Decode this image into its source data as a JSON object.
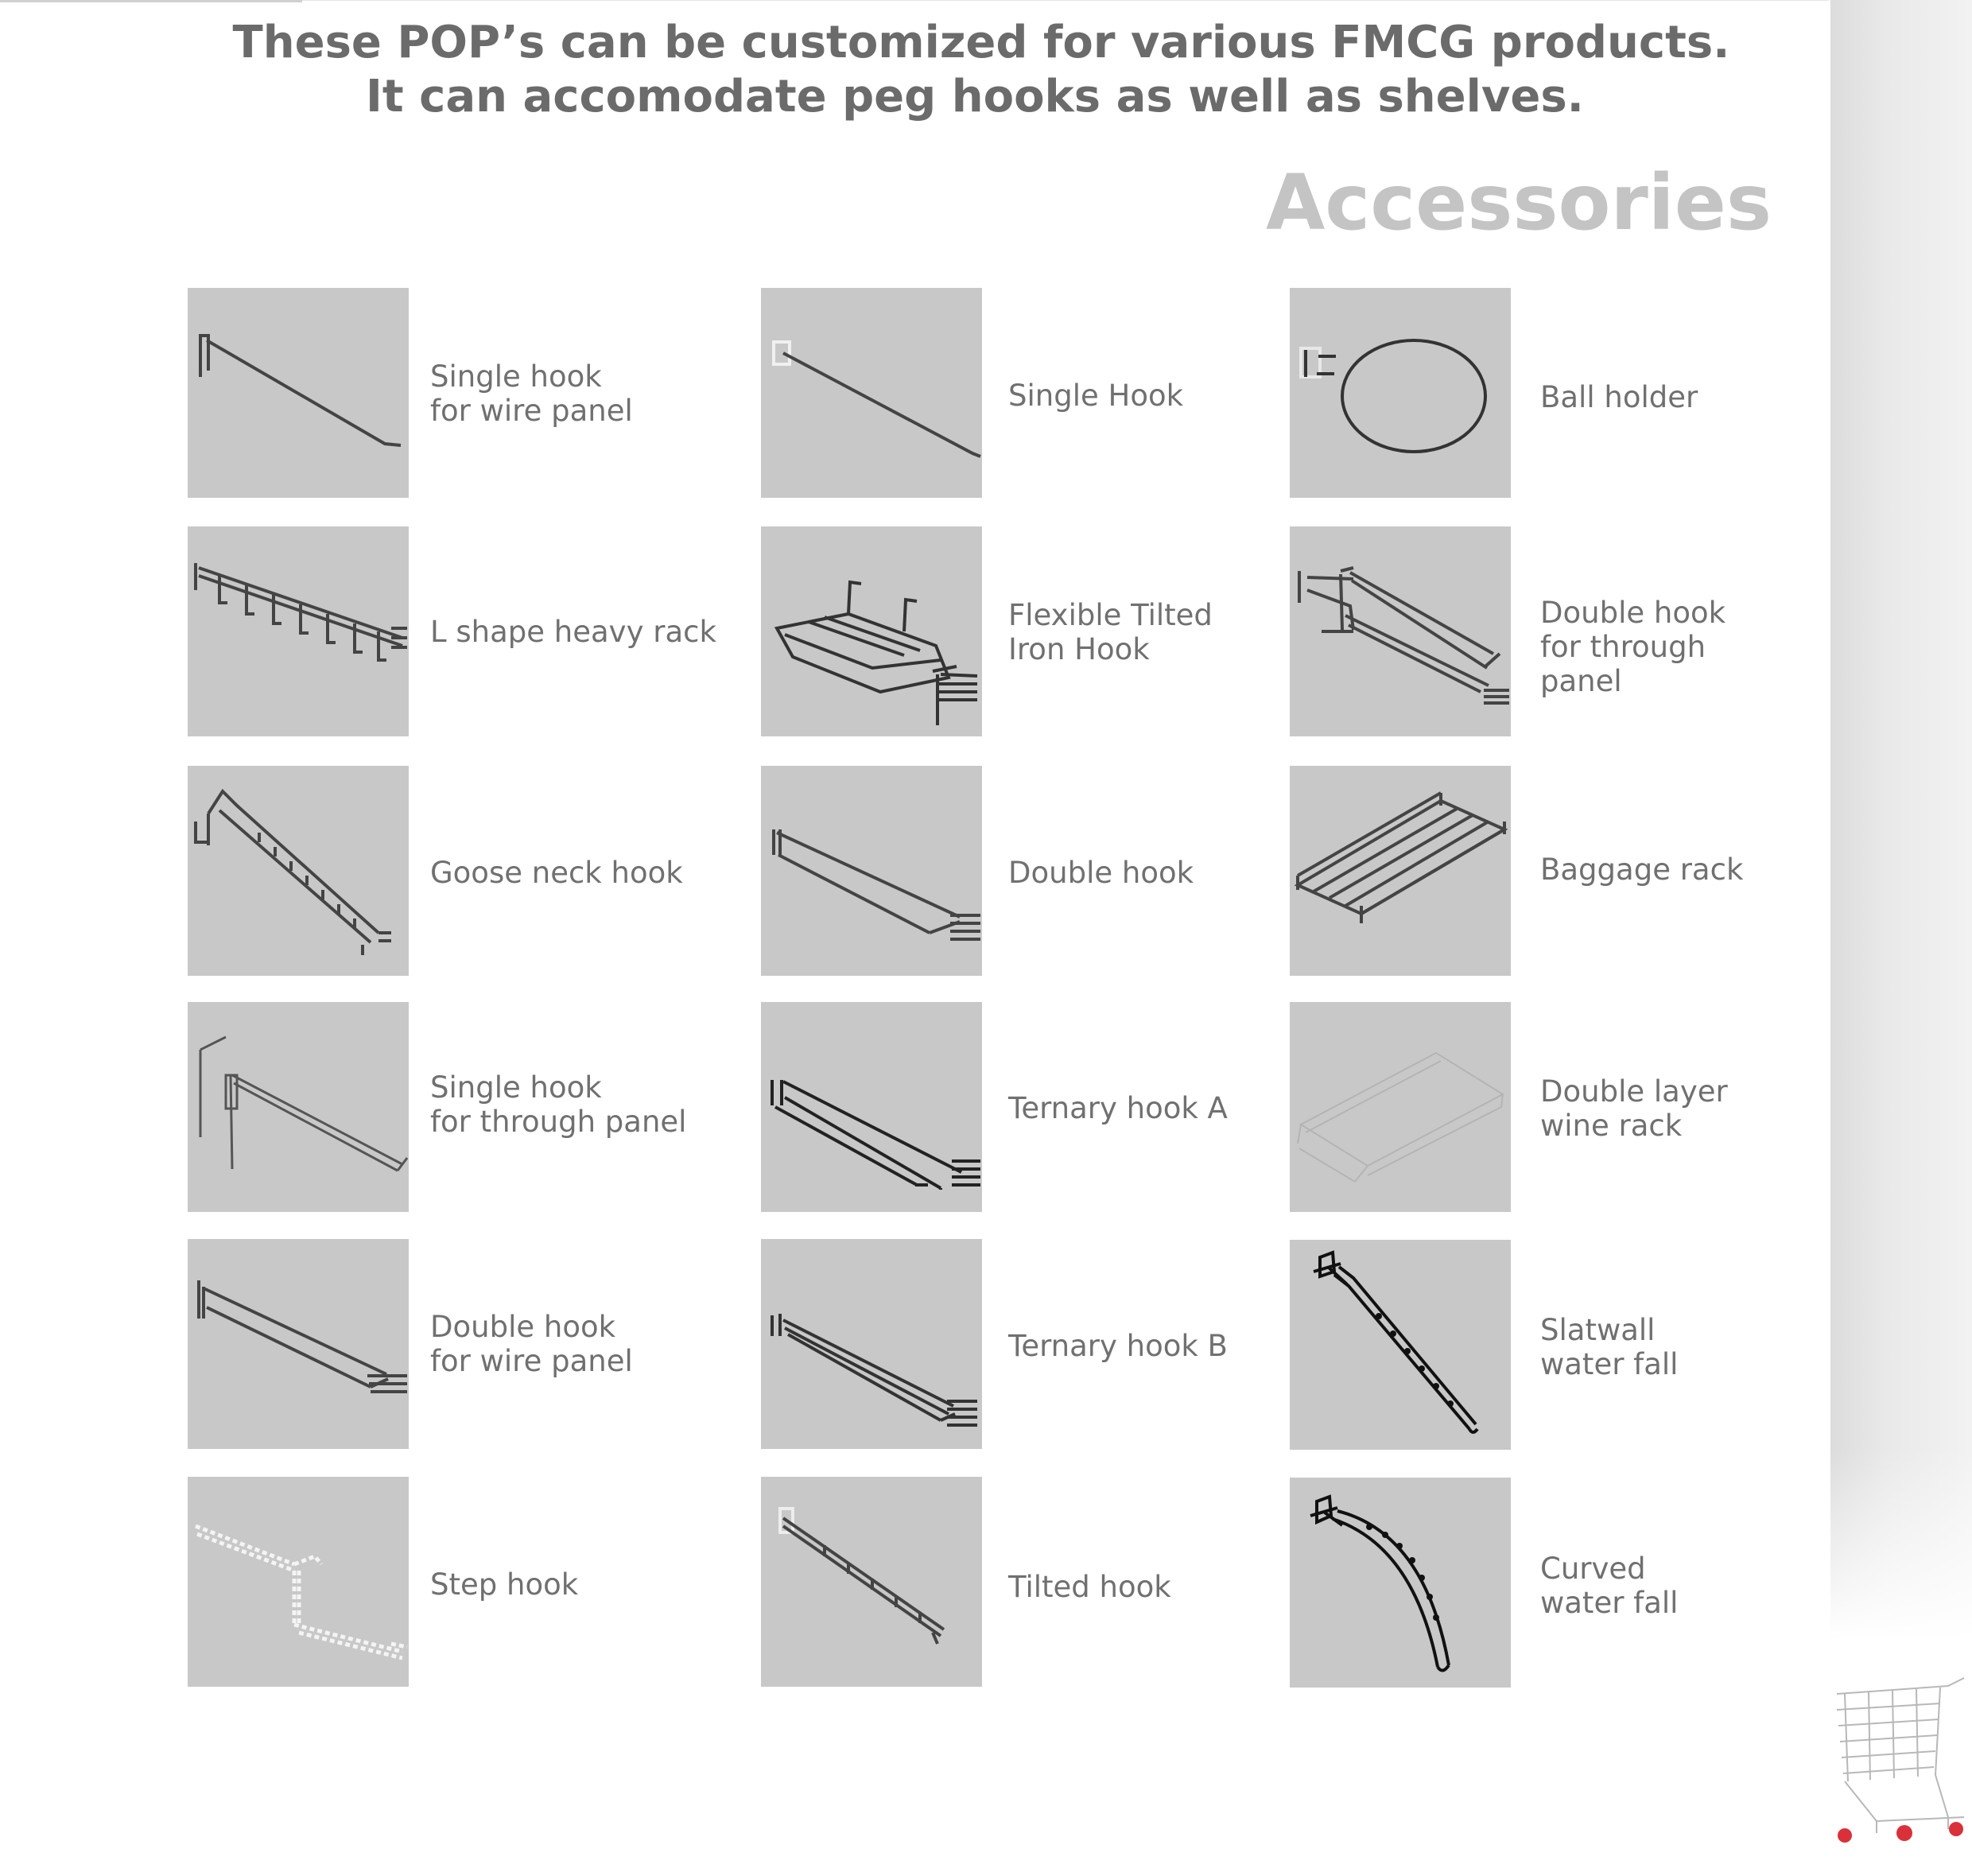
{
  "headline": {
    "line1": "These POP’s can be customized for various FMCG products.",
    "line2": "It can accomodate peg hooks as well as shelves."
  },
  "section_title": "Accessories",
  "accessories": [
    {
      "name": "single-hook-wire-panel",
      "icon": "single-hook-icon",
      "lines": [
        "Single hook",
        "for wire panel"
      ]
    },
    {
      "name": "l-shape-heavy-rack",
      "icon": "l-shape-rack-icon",
      "lines": [
        "L shape heavy rack"
      ]
    },
    {
      "name": "goose-neck-hook",
      "icon": "goose-neck-hook-icon",
      "lines": [
        "Goose neck hook"
      ]
    },
    {
      "name": "single-hook-through-panel",
      "icon": "single-hook-through-panel-icon",
      "lines": [
        "Single hook",
        "for through panel"
      ]
    },
    {
      "name": "double-hook-wire-panel",
      "icon": "double-hook-icon",
      "lines": [
        "Double hook",
        "for wire panel"
      ]
    },
    {
      "name": "step-hook",
      "icon": "step-hook-icon",
      "lines": [
        "Step hook"
      ]
    },
    {
      "name": "single-hook",
      "icon": "single-hook-icon",
      "lines": [
        "Single Hook"
      ]
    },
    {
      "name": "flexible-tilted-iron-hook",
      "icon": "tilted-iron-hook-icon",
      "lines": [
        "Flexible Tilted",
        "Iron Hook"
      ]
    },
    {
      "name": "double-hook",
      "icon": "double-hook-icon",
      "lines": [
        "Double hook"
      ]
    },
    {
      "name": "ternary-hook-a",
      "icon": "ternary-hook-icon",
      "lines": [
        "Ternary hook A"
      ]
    },
    {
      "name": "ternary-hook-b",
      "icon": "ternary-hook-icon",
      "lines": [
        "Ternary hook B"
      ]
    },
    {
      "name": "tilted-hook",
      "icon": "tilted-hook-icon",
      "lines": [
        "Tilted hook"
      ]
    },
    {
      "name": "ball-holder",
      "icon": "ball-holder-icon",
      "lines": [
        "Ball holder"
      ]
    },
    {
      "name": "double-hook-through-panel",
      "icon": "double-hook-through-panel-icon",
      "lines": [
        "Double hook",
        "for through",
        "panel"
      ]
    },
    {
      "name": "baggage-rack",
      "icon": "baggage-rack-icon",
      "lines": [
        "Baggage rack"
      ]
    },
    {
      "name": "double-layer-wine-rack",
      "icon": "wine-rack-icon",
      "lines": [
        "Double layer",
        "wine rack"
      ]
    },
    {
      "name": "slatwall-water-fall",
      "icon": "water-fall-icon",
      "lines": [
        "Slatwall",
        "water fall"
      ]
    },
    {
      "name": "curved-water-fall",
      "icon": "curved-water-fall-icon",
      "lines": [
        "Curved",
        "water fall"
      ]
    }
  ]
}
